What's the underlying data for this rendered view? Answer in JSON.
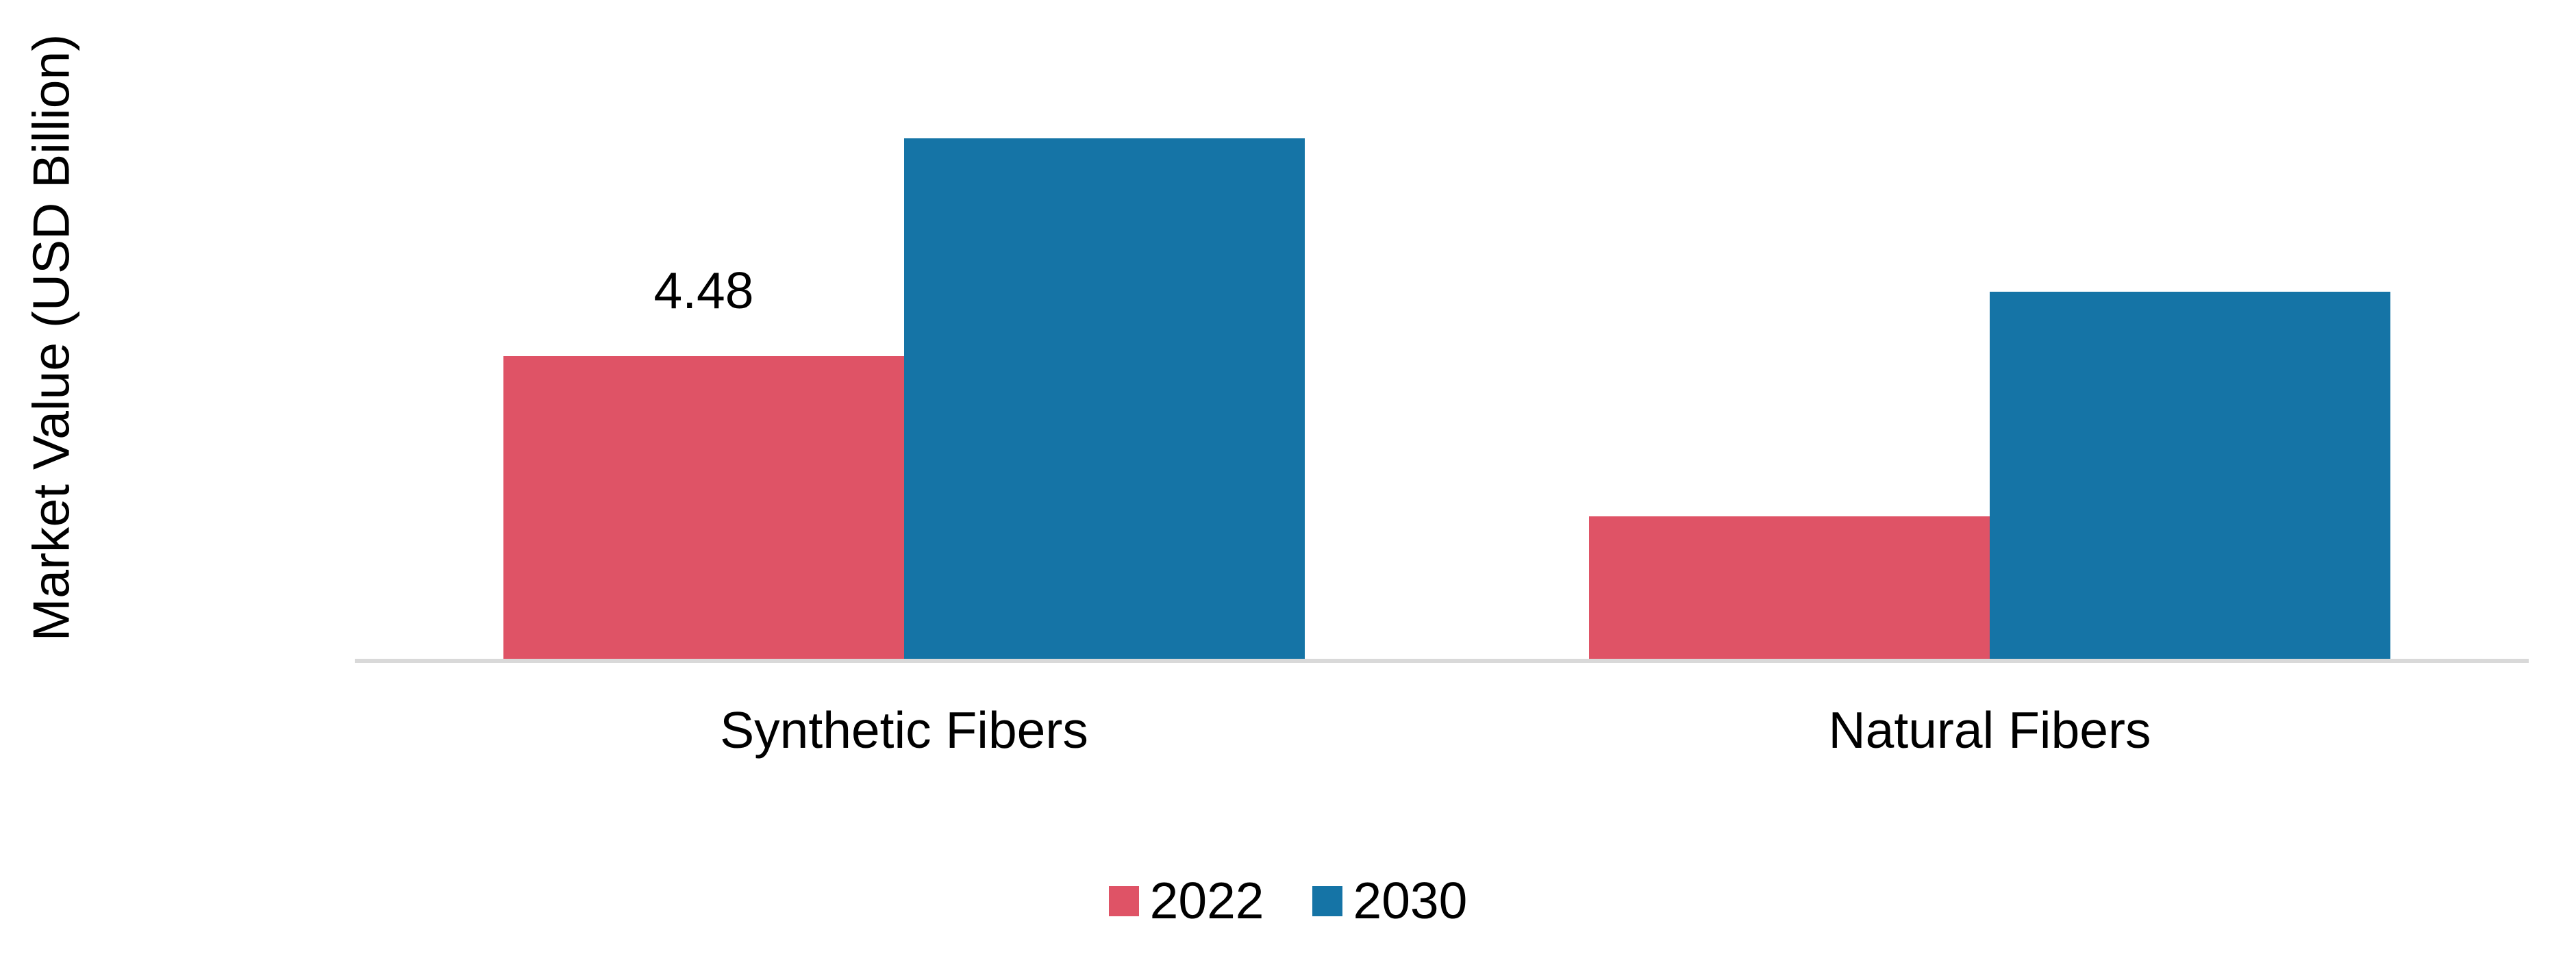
{
  "chart_data": {
    "type": "bar",
    "categories": [
      "Synthetic Fibers",
      "Natural Fibers"
    ],
    "series": [
      {
        "name": "2022",
        "color": "#df5366",
        "values": [
          4.48,
          2.11
        ],
        "data_labels": [
          "4.48",
          null
        ]
      },
      {
        "name": "2030",
        "color": "#1574a6",
        "values": [
          7.7,
          5.43
        ],
        "data_labels": [
          null,
          null
        ]
      }
    ],
    "title": "",
    "xlabel": "",
    "ylabel": "Market Value (USD Billion)",
    "ylim": [
      0,
      8
    ],
    "grid": false,
    "y_axis_ticks_visible": false,
    "legend_position": "bottom",
    "axis_line_color": "#d9d9d9",
    "background": "#ffffff",
    "text_color": "#000000"
  }
}
